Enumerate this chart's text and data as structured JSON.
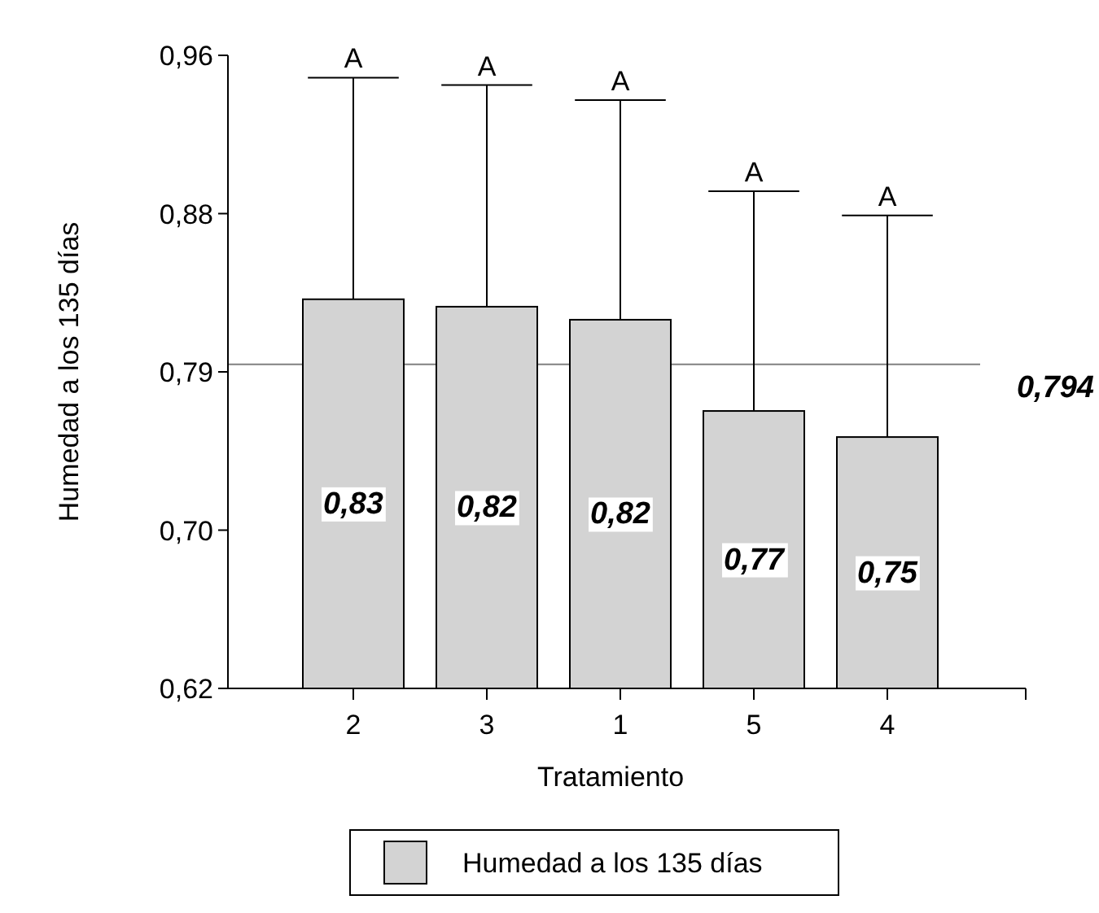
{
  "chart_data": {
    "type": "bar",
    "xlabel": "Tratamiento",
    "ylabel": "Humedad a los 135 días",
    "categories": [
      "2",
      "3",
      "1",
      "5",
      "4"
    ],
    "series": [
      {
        "name": "Humedad a los 135 días",
        "color": "#d3d3d3",
        "values": [
          0.829,
          0.825,
          0.818,
          0.769,
          0.755
        ],
        "errors": [
          [
            0.829,
            0.948
          ],
          [
            0.825,
            0.944
          ],
          [
            0.818,
            0.936
          ],
          [
            0.769,
            0.887
          ],
          [
            0.755,
            0.874
          ]
        ],
        "value_labels": [
          "0,83",
          "0,82",
          "0,82",
          "0,77",
          "0,75"
        ]
      }
    ],
    "ylim": [
      0.62,
      0.96
    ],
    "yticks": [
      {
        "value": 0.62,
        "label": "0,62"
      },
      {
        "value": 0.705,
        "label": "0,70"
      },
      {
        "value": 0.79,
        "label": "0,79"
      },
      {
        "value": 0.875,
        "label": "0,88"
      },
      {
        "value": 0.96,
        "label": "0,96"
      }
    ],
    "ref_lines": [
      {
        "axis": "y",
        "value": 0.794,
        "label": "0,794",
        "color": "#808080"
      }
    ],
    "annotations": [
      "A",
      "A",
      "A",
      "A",
      "A"
    ],
    "grid": false,
    "legend": "bottom"
  }
}
